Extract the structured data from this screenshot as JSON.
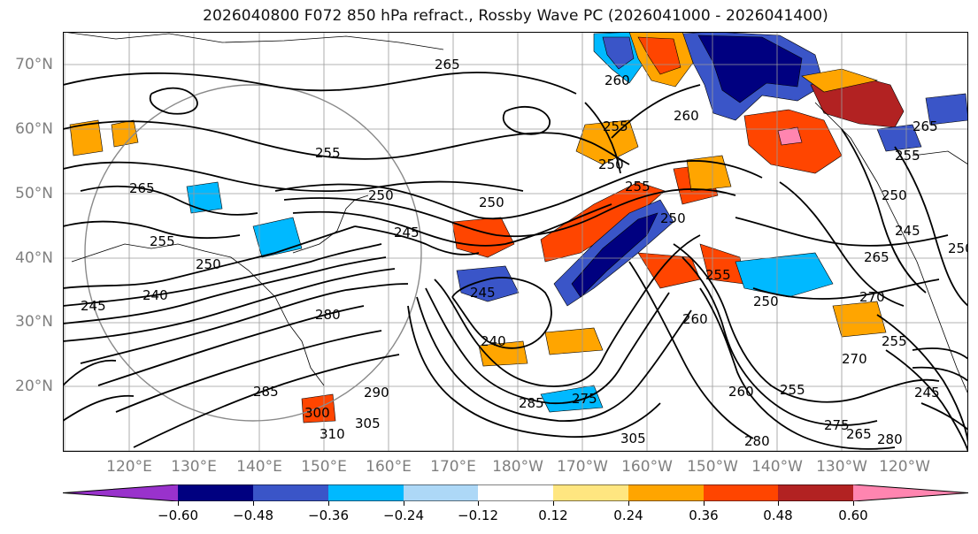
{
  "title": "2026040800 F072 850 hPa refract., Rossby Wave PC (2026041000 - 2026041400)",
  "map": {
    "lat_labels": [
      "70°N",
      "60°N",
      "50°N",
      "40°N",
      "30°N",
      "20°N"
    ],
    "lon_labels": [
      "120°E",
      "130°E",
      "140°E",
      "150°E",
      "160°E",
      "170°E",
      "180°W",
      "170°W",
      "160°W",
      "150°W",
      "140°W",
      "130°W",
      "120°W"
    ],
    "contour_labels": [
      "265",
      "260",
      "255",
      "250",
      "245",
      "240",
      "255",
      "265",
      "250",
      "245",
      "250",
      "255",
      "250",
      "255",
      "250",
      "245",
      "240",
      "255",
      "250",
      "260",
      "255",
      "265",
      "250",
      "245",
      "250",
      "265",
      "270",
      "280",
      "285",
      "290",
      "300",
      "305",
      "310",
      "285",
      "275",
      "305",
      "260",
      "255",
      "280",
      "275",
      "265",
      "280",
      "255",
      "270",
      "260",
      "245"
    ],
    "shading_colors": {
      "strong_negative": "#000080",
      "negative": "#3a55c8",
      "weak_negative": "#00b9ff",
      "slight_negative": "#add8f7",
      "slight_positive": "#ffe680",
      "weak_positive": "#ffa500",
      "positive": "#ff4500",
      "strong_positive": "#b22222",
      "extreme_positive": "#ff85b0",
      "extreme_negative": "#9932cc"
    }
  },
  "colorbar": {
    "colors": [
      "#9932cc",
      "#000080",
      "#3a55c8",
      "#00b9ff",
      "#add8f7",
      "#ffffff",
      "#ffe680",
      "#ffa500",
      "#ff4500",
      "#b22222",
      "#ff85b0"
    ],
    "tick_labels": [
      "−0.60",
      "−0.48",
      "−0.36",
      "−0.24",
      "−0.12",
      "0.12",
      "0.24",
      "0.36",
      "0.48",
      "0.60"
    ]
  }
}
